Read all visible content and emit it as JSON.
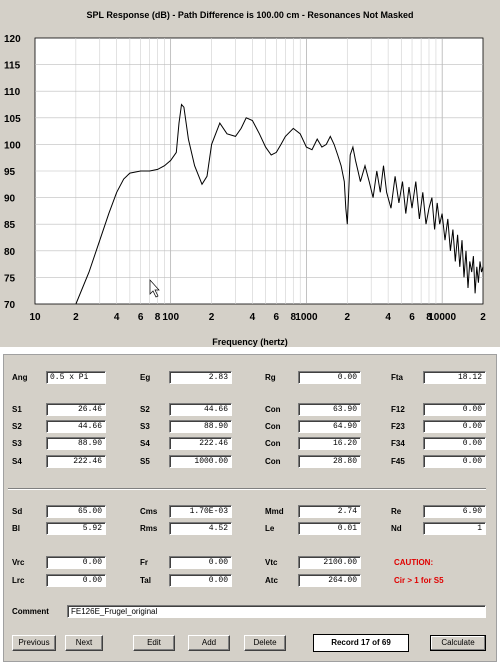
{
  "chart_data": {
    "type": "line",
    "title": "SPL Response (dB) - Path Difference is 100.00 cm - Resonances Not Masked",
    "xlabel": "Frequency (hertz)",
    "ylabel": "",
    "xscale": "log",
    "xlim": [
      10,
      20000
    ],
    "ylim": [
      70,
      120
    ],
    "yticks": [
      70,
      75,
      80,
      85,
      90,
      95,
      100,
      105,
      110,
      115,
      120
    ],
    "xticks": [
      {
        "v": 10,
        "label": "10"
      },
      {
        "v": 20,
        "label": "2"
      },
      {
        "v": 40,
        "label": "4"
      },
      {
        "v": 60,
        "label": "6"
      },
      {
        "v": 80,
        "label": "8"
      },
      {
        "v": 100,
        "label": "100"
      },
      {
        "v": 200,
        "label": "2"
      },
      {
        "v": 400,
        "label": "4"
      },
      {
        "v": 600,
        "label": "6"
      },
      {
        "v": 800,
        "label": "8"
      },
      {
        "v": 1000,
        "label": "1000"
      },
      {
        "v": 2000,
        "label": "2"
      },
      {
        "v": 4000,
        "label": "4"
      },
      {
        "v": 6000,
        "label": "6"
      },
      {
        "v": 8000,
        "label": "8"
      },
      {
        "v": 10000,
        "label": "10000"
      },
      {
        "v": 20000,
        "label": "2"
      }
    ],
    "grid": true,
    "series": [
      {
        "points": [
          [
            20,
            70
          ],
          [
            25,
            76
          ],
          [
            30,
            82
          ],
          [
            35,
            87
          ],
          [
            40,
            91
          ],
          [
            45,
            93.5
          ],
          [
            50,
            94.6
          ],
          [
            60,
            95
          ],
          [
            70,
            95
          ],
          [
            80,
            95.3
          ],
          [
            90,
            96
          ],
          [
            100,
            97
          ],
          [
            110,
            98.5
          ],
          [
            115,
            104
          ],
          [
            120,
            107.5
          ],
          [
            125,
            107
          ],
          [
            135,
            101
          ],
          [
            150,
            96
          ],
          [
            170,
            92.5
          ],
          [
            185,
            94
          ],
          [
            200,
            100
          ],
          [
            230,
            104
          ],
          [
            260,
            102
          ],
          [
            300,
            101.5
          ],
          [
            330,
            103
          ],
          [
            360,
            105
          ],
          [
            400,
            104.5
          ],
          [
            450,
            102
          ],
          [
            500,
            99.5
          ],
          [
            550,
            98
          ],
          [
            600,
            98.5
          ],
          [
            650,
            100
          ],
          [
            700,
            101.5
          ],
          [
            800,
            103
          ],
          [
            900,
            102
          ],
          [
            1000,
            99.5
          ],
          [
            1100,
            99
          ],
          [
            1200,
            101
          ],
          [
            1300,
            99.5
          ],
          [
            1400,
            100
          ],
          [
            1500,
            101.5
          ],
          [
            1600,
            100
          ],
          [
            1700,
            98
          ],
          [
            1800,
            96
          ],
          [
            1900,
            93
          ],
          [
            1950,
            88
          ],
          [
            2000,
            85
          ],
          [
            2050,
            91
          ],
          [
            2100,
            98
          ],
          [
            2200,
            99.5
          ],
          [
            2300,
            97
          ],
          [
            2400,
            95
          ],
          [
            2500,
            93
          ],
          [
            2700,
            96
          ],
          [
            2900,
            93
          ],
          [
            3100,
            90
          ],
          [
            3300,
            95
          ],
          [
            3500,
            91
          ],
          [
            3700,
            96
          ],
          [
            3900,
            91
          ],
          [
            4200,
            88
          ],
          [
            4500,
            94
          ],
          [
            4800,
            89
          ],
          [
            5100,
            93
          ],
          [
            5400,
            87
          ],
          [
            5700,
            92
          ],
          [
            6000,
            88
          ],
          [
            6400,
            93
          ],
          [
            6800,
            86
          ],
          [
            7200,
            91
          ],
          [
            7600,
            85
          ],
          [
            8000,
            88
          ],
          [
            8400,
            90
          ],
          [
            8800,
            84
          ],
          [
            9200,
            89
          ],
          [
            9600,
            85
          ],
          [
            10000,
            87
          ],
          [
            10500,
            82
          ],
          [
            11000,
            86
          ],
          [
            11500,
            80
          ],
          [
            12000,
            84
          ],
          [
            12500,
            78
          ],
          [
            13000,
            83
          ],
          [
            13500,
            77
          ],
          [
            14000,
            82
          ],
          [
            14500,
            75
          ],
          [
            15000,
            80
          ],
          [
            15500,
            73
          ],
          [
            16000,
            78
          ],
          [
            16500,
            76
          ],
          [
            17000,
            79
          ],
          [
            17500,
            72
          ],
          [
            18000,
            77
          ],
          [
            18500,
            74
          ],
          [
            19000,
            78
          ],
          [
            19500,
            76
          ],
          [
            20000,
            77
          ]
        ]
      }
    ]
  },
  "fields": {
    "ang_label": "Ang",
    "ang_value": "0.5 x Pi",
    "eg_label": "Eg",
    "eg_value": "2.83",
    "rg_label": "Rg",
    "rg_value": "0.00",
    "fta_label": "Fta",
    "fta_value": "18.12",
    "s1_label": "S1",
    "s1_value": "26.46",
    "s2_label": "S2",
    "s2_value": "44.66",
    "s3_label": "S3",
    "s3_value": "88.90",
    "s4_label": "S4",
    "s4_value": "222.46",
    "s2b_label": "S2",
    "s2b_value": "44.66",
    "s3b_label": "S3",
    "s3b_value": "88.90",
    "s4b_label": "S4",
    "s4b_value": "222.46",
    "s5_label": "S5",
    "s5_value": "1000.00",
    "con1_label": "Con",
    "con1_value": "63.90",
    "con2_label": "Con",
    "con2_value": "64.90",
    "con3_label": "Con",
    "con3_value": "16.20",
    "con4_label": "Con",
    "con4_value": "28.80",
    "f12_label": "F12",
    "f12_value": "0.00",
    "f23_label": "F23",
    "f23_value": "0.00",
    "f34_label": "F34",
    "f34_value": "0.00",
    "f45_label": "F45",
    "f45_value": "0.00",
    "sd_label": "Sd",
    "sd_value": "65.00",
    "cms_label": "Cms",
    "cms_value": "1.70E-03",
    "mmd_label": "Mmd",
    "mmd_value": "2.74",
    "re_label": "Re",
    "re_value": "6.90",
    "bl_label": "Bl",
    "bl_value": "5.92",
    "rms_label": "Rms",
    "rms_value": "4.52",
    "le_label": "Le",
    "le_value": "0.01",
    "nd_label": "Nd",
    "nd_value": "1",
    "vrc_label": "Vrc",
    "vrc_value": "0.00",
    "fr_label": "Fr",
    "fr_value": "0.00",
    "vtc_label": "Vtc",
    "vtc_value": "2100.00",
    "lrc_label": "Lrc",
    "lrc_value": "0.00",
    "tal_label": "Tal",
    "tal_value": "0.00",
    "atc_label": "Atc",
    "atc_value": "264.00",
    "comment_label": "Comment",
    "comment_value": "FE126E_Frugel_original"
  },
  "caution": {
    "title": "CAUTION:",
    "message": "Cir > 1 for S5",
    "color": "#e00000"
  },
  "buttons": {
    "previous": "Previous",
    "next": "Next",
    "edit": "Edit",
    "add": "Add",
    "delete": "Delete",
    "calculate": "Calculate"
  },
  "record": "Record 17 of 69"
}
